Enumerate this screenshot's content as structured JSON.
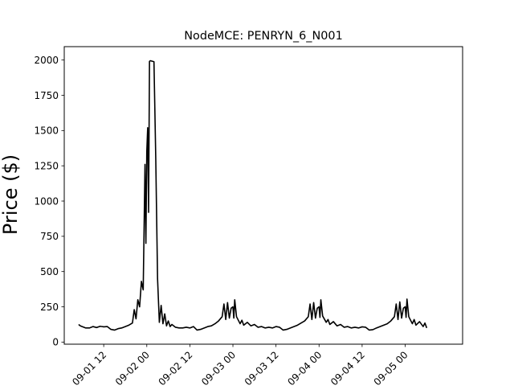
{
  "chart_data": {
    "type": "line",
    "title": "NodeMCE: PENRYN_6_N001",
    "xlabel": "",
    "ylabel": "Price ($)",
    "ylim": [
      -15,
      2095
    ],
    "xlim": [
      "2020-09-01 01:00",
      "2020-09-05 16:00"
    ],
    "grid": false,
    "line_color": "#000000",
    "y_ticks": [
      0,
      250,
      500,
      750,
      1000,
      1250,
      1500,
      1750,
      2000
    ],
    "x_ticks": [
      {
        "x": "2020-09-01 12:00",
        "label": "09-01 12"
      },
      {
        "x": "2020-09-02 00:00",
        "label": "09-02 00"
      },
      {
        "x": "2020-09-02 12:00",
        "label": "09-02 12"
      },
      {
        "x": "2020-09-03 00:00",
        "label": "09-03 00"
      },
      {
        "x": "2020-09-03 12:00",
        "label": "09-03 12"
      },
      {
        "x": "2020-09-04 00:00",
        "label": "09-04 00"
      },
      {
        "x": "2020-09-04 12:00",
        "label": "09-04 12"
      },
      {
        "x": "2020-09-05 00:00",
        "label": "09-05 00"
      }
    ],
    "series": [
      {
        "values": [
          [
            "2020-09-01 05:00",
            125
          ],
          [
            "2020-09-01 05:30",
            115
          ],
          [
            "2020-09-01 06:00",
            110
          ],
          [
            "2020-09-01 07:00",
            100
          ],
          [
            "2020-09-01 08:00",
            100
          ],
          [
            "2020-09-01 09:00",
            110
          ],
          [
            "2020-09-01 10:00",
            103
          ],
          [
            "2020-09-01 11:00",
            112
          ],
          [
            "2020-09-01 12:00",
            108
          ],
          [
            "2020-09-01 13:00",
            110
          ],
          [
            "2020-09-01 14:00",
            90
          ],
          [
            "2020-09-01 15:00",
            85
          ],
          [
            "2020-09-01 16:00",
            95
          ],
          [
            "2020-09-01 17:00",
            100
          ],
          [
            "2020-09-01 18:00",
            110
          ],
          [
            "2020-09-01 19:00",
            120
          ],
          [
            "2020-09-01 20:00",
            135
          ],
          [
            "2020-09-01 20:30",
            230
          ],
          [
            "2020-09-01 21:00",
            165
          ],
          [
            "2020-09-01 21:30",
            300
          ],
          [
            "2020-09-01 22:00",
            250
          ],
          [
            "2020-09-01 22:30",
            430
          ],
          [
            "2020-09-01 23:00",
            370
          ],
          [
            "2020-09-01 23:30",
            1260
          ],
          [
            "2020-09-01 23:45",
            700
          ],
          [
            "2020-09-02 00:00",
            1350
          ],
          [
            "2020-09-02 00:15",
            1520
          ],
          [
            "2020-09-02 00:30",
            920
          ],
          [
            "2020-09-02 00:45",
            1990
          ],
          [
            "2020-09-02 01:00",
            1995
          ],
          [
            "2020-09-02 02:00",
            1988
          ],
          [
            "2020-09-02 02:30",
            1300
          ],
          [
            "2020-09-02 03:00",
            450
          ],
          [
            "2020-09-02 03:30",
            140
          ],
          [
            "2020-09-02 04:00",
            260
          ],
          [
            "2020-09-02 04:30",
            130
          ],
          [
            "2020-09-02 05:00",
            200
          ],
          [
            "2020-09-02 05:30",
            115
          ],
          [
            "2020-09-02 06:00",
            150
          ],
          [
            "2020-09-02 06:30",
            110
          ],
          [
            "2020-09-02 07:00",
            125
          ],
          [
            "2020-09-02 08:00",
            105
          ],
          [
            "2020-09-02 09:00",
            100
          ],
          [
            "2020-09-02 10:00",
            100
          ],
          [
            "2020-09-02 11:00",
            105
          ],
          [
            "2020-09-02 12:00",
            100
          ],
          [
            "2020-09-02 13:00",
            110
          ],
          [
            "2020-09-02 14:00",
            85
          ],
          [
            "2020-09-02 15:00",
            90
          ],
          [
            "2020-09-02 16:00",
            100
          ],
          [
            "2020-09-02 17:00",
            110
          ],
          [
            "2020-09-02 18:00",
            115
          ],
          [
            "2020-09-02 19:00",
            130
          ],
          [
            "2020-09-02 20:00",
            150
          ],
          [
            "2020-09-02 21:00",
            180
          ],
          [
            "2020-09-02 21:30",
            270
          ],
          [
            "2020-09-02 22:00",
            160
          ],
          [
            "2020-09-02 22:30",
            280
          ],
          [
            "2020-09-02 23:00",
            170
          ],
          [
            "2020-09-02 23:30",
            240
          ],
          [
            "2020-09-03 00:00",
            250
          ],
          [
            "2020-09-03 00:15",
            170
          ],
          [
            "2020-09-03 00:30",
            300
          ],
          [
            "2020-09-03 01:00",
            180
          ],
          [
            "2020-09-03 02:00",
            130
          ],
          [
            "2020-09-03 02:30",
            155
          ],
          [
            "2020-09-03 03:00",
            120
          ],
          [
            "2020-09-03 04:00",
            140
          ],
          [
            "2020-09-03 05:00",
            115
          ],
          [
            "2020-09-03 06:00",
            125
          ],
          [
            "2020-09-03 07:00",
            105
          ],
          [
            "2020-09-03 08:00",
            110
          ],
          [
            "2020-09-03 09:00",
            100
          ],
          [
            "2020-09-03 10:00",
            105
          ],
          [
            "2020-09-03 11:00",
            100
          ],
          [
            "2020-09-03 12:00",
            110
          ],
          [
            "2020-09-03 13:00",
            105
          ],
          [
            "2020-09-03 14:00",
            85
          ],
          [
            "2020-09-03 15:00",
            90
          ],
          [
            "2020-09-03 16:00",
            100
          ],
          [
            "2020-09-03 17:00",
            110
          ],
          [
            "2020-09-03 18:00",
            120
          ],
          [
            "2020-09-03 19:00",
            135
          ],
          [
            "2020-09-03 20:00",
            150
          ],
          [
            "2020-09-03 21:00",
            180
          ],
          [
            "2020-09-03 21:30",
            270
          ],
          [
            "2020-09-03 22:00",
            160
          ],
          [
            "2020-09-03 22:30",
            280
          ],
          [
            "2020-09-03 23:00",
            170
          ],
          [
            "2020-09-03 23:30",
            240
          ],
          [
            "2020-09-04 00:00",
            250
          ],
          [
            "2020-09-04 00:15",
            175
          ],
          [
            "2020-09-04 00:30",
            300
          ],
          [
            "2020-09-04 01:00",
            185
          ],
          [
            "2020-09-04 02:00",
            140
          ],
          [
            "2020-09-04 02:30",
            160
          ],
          [
            "2020-09-04 03:00",
            125
          ],
          [
            "2020-09-04 04:00",
            145
          ],
          [
            "2020-09-04 05:00",
            115
          ],
          [
            "2020-09-04 06:00",
            125
          ],
          [
            "2020-09-04 07:00",
            105
          ],
          [
            "2020-09-04 08:00",
            110
          ],
          [
            "2020-09-04 09:00",
            100
          ],
          [
            "2020-09-04 10:00",
            105
          ],
          [
            "2020-09-04 11:00",
            100
          ],
          [
            "2020-09-04 12:00",
            108
          ],
          [
            "2020-09-04 13:00",
            105
          ],
          [
            "2020-09-04 14:00",
            85
          ],
          [
            "2020-09-04 15:00",
            88
          ],
          [
            "2020-09-04 16:00",
            100
          ],
          [
            "2020-09-04 17:00",
            110
          ],
          [
            "2020-09-04 18:00",
            120
          ],
          [
            "2020-09-04 19:00",
            130
          ],
          [
            "2020-09-04 20:00",
            150
          ],
          [
            "2020-09-04 21:00",
            180
          ],
          [
            "2020-09-04 21:30",
            270
          ],
          [
            "2020-09-04 22:00",
            160
          ],
          [
            "2020-09-04 22:30",
            285
          ],
          [
            "2020-09-04 23:00",
            170
          ],
          [
            "2020-09-04 23:30",
            240
          ],
          [
            "2020-09-05 00:00",
            250
          ],
          [
            "2020-09-05 00:15",
            175
          ],
          [
            "2020-09-05 00:30",
            305
          ],
          [
            "2020-09-05 01:00",
            180
          ],
          [
            "2020-09-05 02:00",
            130
          ],
          [
            "2020-09-05 02:30",
            160
          ],
          [
            "2020-09-05 03:00",
            120
          ],
          [
            "2020-09-05 04:00",
            145
          ],
          [
            "2020-09-05 05:00",
            110
          ],
          [
            "2020-09-05 05:30",
            135
          ],
          [
            "2020-09-05 06:00",
            100
          ]
        ]
      }
    ]
  }
}
